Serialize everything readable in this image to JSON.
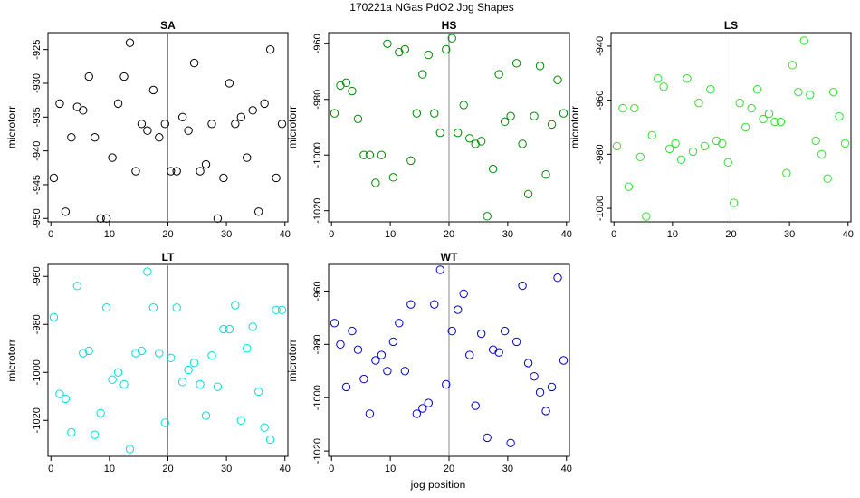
{
  "suptitle": "170221a   NGas PdO2 Jog Shapes",
  "xlabel": "jog position",
  "chart_data": [
    {
      "type": "scatter",
      "title": "SA",
      "ylabel": "microtorr",
      "color": "#000000",
      "xlim": [
        -0.5,
        40.5
      ],
      "ylim": [
        -950.5,
        -922.5
      ],
      "xticks": [
        0,
        10,
        20,
        30,
        40
      ],
      "yticks": [
        -950,
        -945,
        -940,
        -935,
        -930,
        -925
      ],
      "vline": 20,
      "x": [
        0.5,
        1.5,
        2.5,
        3.5,
        4.5,
        5.5,
        6.5,
        7.5,
        8.5,
        9.5,
        10.5,
        11.5,
        12.5,
        13.5,
        14.5,
        15.5,
        16.5,
        17.5,
        18.5,
        19.5,
        20.5,
        21.5,
        22.5,
        23.5,
        24.5,
        25.5,
        26.5,
        27.5,
        28.5,
        29.5,
        30.5,
        31.5,
        32.5,
        33.5,
        34.5,
        35.5,
        36.5,
        37.5,
        38.5,
        39.5
      ],
      "y": [
        -944,
        -933,
        -949,
        -938,
        -933.5,
        -934,
        -929,
        -938,
        -950,
        -950,
        -941,
        -933,
        -929,
        -924,
        -943,
        -936,
        -937,
        -931,
        -938,
        -936,
        -943,
        -943,
        -935,
        -937,
        -927,
        -943,
        -942,
        -936,
        -950,
        -944,
        -930,
        -936,
        -935,
        -941,
        -934,
        -949,
        -933,
        -925,
        -944,
        -936
      ]
    },
    {
      "type": "scatter",
      "title": "HS",
      "ylabel": "microtorr",
      "color": "#008800",
      "xlim": [
        -0.5,
        40.5
      ],
      "ylim": [
        -1024,
        -956
      ],
      "xticks": [
        0,
        10,
        20,
        30,
        40
      ],
      "yticks": [
        -1020,
        -1000,
        -980,
        -960
      ],
      "vline": 20,
      "x": [
        0.5,
        1.5,
        2.5,
        3.5,
        4.5,
        5.5,
        6.5,
        7.5,
        8.5,
        9.5,
        10.5,
        11.5,
        12.5,
        13.5,
        14.5,
        15.5,
        16.5,
        17.5,
        18.5,
        19.5,
        20.5,
        21.5,
        22.5,
        23.5,
        24.5,
        25.5,
        26.5,
        27.5,
        28.5,
        29.5,
        30.5,
        31.5,
        32.5,
        33.5,
        34.5,
        35.5,
        36.5,
        37.5,
        38.5,
        39.5
      ],
      "y": [
        -985,
        -975,
        -974,
        -977,
        -987,
        -1000,
        -1000,
        -1010,
        -1000,
        -960,
        -1008,
        -963,
        -962,
        -1002,
        -985,
        -971,
        -964,
        -985,
        -992,
        -962,
        -958,
        -992,
        -982,
        -994,
        -996,
        -995,
        -1022,
        -1005,
        -971,
        -988,
        -986,
        -967,
        -996,
        -1014,
        -986,
        -968,
        -1007,
        -989,
        -973,
        -985
      ]
    },
    {
      "type": "scatter",
      "title": "LS",
      "ylabel": "microtorr",
      "color": "#33dd33",
      "xlim": [
        -0.5,
        40.5
      ],
      "ylim": [
        -1005,
        -935
      ],
      "xticks": [
        0,
        10,
        20,
        30,
        40
      ],
      "yticks": [
        -1000,
        -980,
        -960,
        -940
      ],
      "vline": 20,
      "x": [
        0.5,
        1.5,
        2.5,
        3.5,
        4.5,
        5.5,
        6.5,
        7.5,
        8.5,
        9.5,
        10.5,
        11.5,
        12.5,
        13.5,
        14.5,
        15.5,
        16.5,
        17.5,
        18.5,
        19.5,
        20.5,
        21.5,
        22.5,
        23.5,
        24.5,
        25.5,
        26.5,
        27.5,
        28.5,
        29.5,
        30.5,
        31.5,
        32.5,
        33.5,
        34.5,
        35.5,
        36.5,
        37.5,
        38.5,
        39.5
      ],
      "y": [
        -977,
        -963,
        -992,
        -963,
        -981,
        -1003,
        -973,
        -952,
        -955,
        -978,
        -976,
        -982,
        -952,
        -979,
        -961,
        -977,
        -956,
        -975,
        -976,
        -983,
        -998,
        -961,
        -970,
        -963,
        -956,
        -967,
        -965,
        -968,
        -968,
        -987,
        -947,
        -957,
        -938,
        -958,
        -975,
        -980,
        -989,
        -957,
        -966,
        -976
      ]
    },
    {
      "type": "scatter",
      "title": "LT",
      "ylabel": "microtorr",
      "color": "#00dddd",
      "xlim": [
        -0.5,
        40.5
      ],
      "ylim": [
        -1035,
        -955
      ],
      "xticks": [
        0,
        10,
        20,
        30,
        40
      ],
      "yticks": [
        -1020,
        -1000,
        -980,
        -960
      ],
      "vline": 20,
      "x": [
        0.5,
        1.5,
        2.5,
        3.5,
        4.5,
        5.5,
        6.5,
        7.5,
        8.5,
        9.5,
        10.5,
        11.5,
        12.5,
        13.5,
        14.5,
        15.5,
        16.5,
        17.5,
        18.5,
        19.5,
        20.5,
        21.5,
        22.5,
        23.5,
        24.5,
        25.5,
        26.5,
        27.5,
        28.5,
        29.5,
        30.5,
        31.5,
        32.5,
        33.5,
        34.5,
        35.5,
        36.5,
        37.5,
        38.5,
        39.5
      ],
      "y": [
        -977,
        -1009,
        -1011,
        -1025,
        -964,
        -992,
        -991,
        -1026,
        -1017,
        -973,
        -1003,
        -1000,
        -1005,
        -1032,
        -992,
        -991,
        -958,
        -973,
        -992,
        -1021,
        -994,
        -973,
        -1004,
        -999,
        -996,
        -1005,
        -1018,
        -993,
        -1006,
        -982,
        -982,
        -972,
        -1020,
        -990,
        -981,
        -1008,
        -1023,
        -1028,
        -974,
        -974
      ]
    },
    {
      "type": "scatter",
      "title": "WT",
      "ylabel": "microtorr",
      "color": "#0000cc",
      "xlim": [
        -0.5,
        40.5
      ],
      "ylim": [
        -1022,
        -950
      ],
      "xticks": [
        0,
        10,
        20,
        30,
        40
      ],
      "yticks": [
        -1020,
        -1000,
        -980,
        -960
      ],
      "vline": 20,
      "x": [
        0.5,
        1.5,
        2.5,
        3.5,
        4.5,
        5.5,
        6.5,
        7.5,
        8.5,
        9.5,
        10.5,
        11.5,
        12.5,
        13.5,
        14.5,
        15.5,
        16.5,
        17.5,
        18.5,
        19.5,
        20.5,
        21.5,
        22.5,
        23.5,
        24.5,
        25.5,
        26.5,
        27.5,
        28.5,
        29.5,
        30.5,
        31.5,
        32.5,
        33.5,
        34.5,
        35.5,
        36.5,
        37.5,
        38.5,
        39.5
      ],
      "y": [
        -972,
        -980,
        -996,
        -975,
        -982,
        -993,
        -1006,
        -986,
        -984,
        -990,
        -979,
        -972,
        -990,
        -965,
        -1006,
        -1004,
        -1002,
        -965,
        -952,
        -995,
        -975,
        -967,
        -961,
        -984,
        -1003,
        -976,
        -1015,
        -982,
        -983,
        -975,
        -1017,
        -979,
        -958,
        -987,
        -992,
        -998,
        -1005,
        -996,
        -955,
        -986
      ]
    }
  ]
}
